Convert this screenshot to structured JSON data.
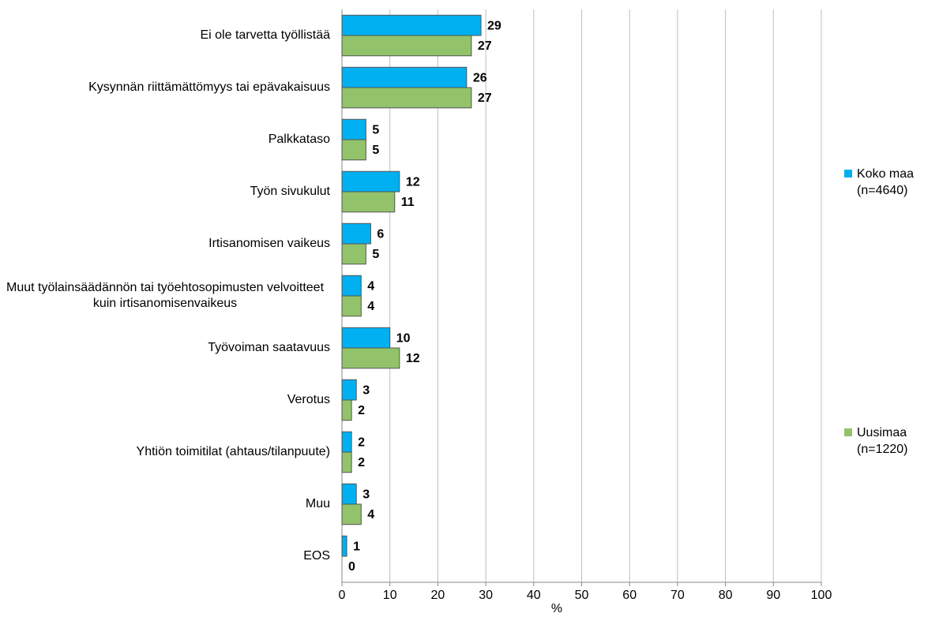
{
  "chart_data": {
    "type": "barh",
    "categories": [
      "Ei ole tarvetta työllistää",
      "Kysynnän riittämättömyys tai epävakaisuus",
      "Palkkataso",
      "Työn sivukulut",
      "Irtisanomisen vaikeus",
      "Muut työlainsäädännön tai työehtosopimusten velvoitteet kuin irtisanomisenvaikeus",
      "Työvoiman saatavuus",
      "Verotus",
      "Yhtiön toimitilat (ahtaus/tilanpuute)",
      "Muu",
      "EOS"
    ],
    "series": [
      {
        "name": "Koko maa (n=4640)",
        "color": "#00b0f0",
        "values": [
          29,
          26,
          5,
          12,
          6,
          4,
          10,
          3,
          2,
          3,
          1
        ]
      },
      {
        "name": "Uusimaa (n=1220)",
        "color": "#92c36b",
        "values": [
          27,
          27,
          5,
          11,
          5,
          4,
          12,
          2,
          2,
          4,
          0
        ]
      }
    ],
    "xlabel": "%",
    "xlim": [
      0,
      100
    ],
    "xticks": [
      0,
      10,
      20,
      30,
      40,
      50,
      60,
      70,
      80,
      90,
      100
    ],
    "grid": true
  }
}
